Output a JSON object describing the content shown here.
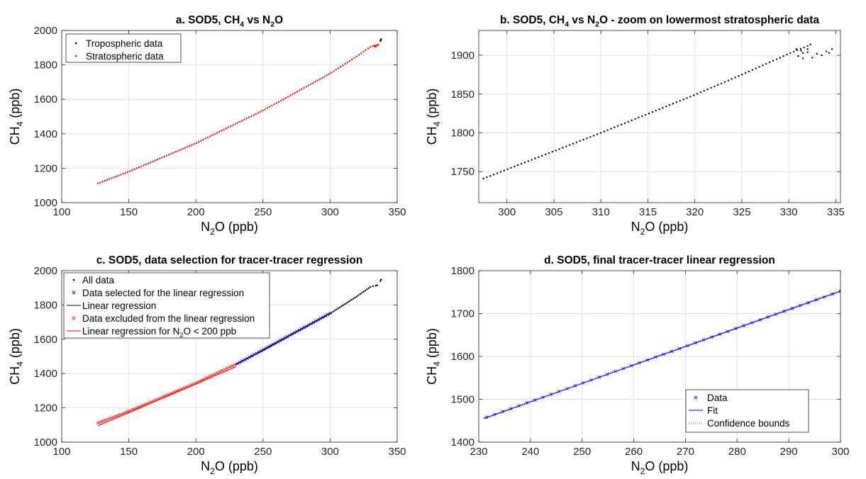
{
  "chart_data": [
    {
      "id": "a",
      "type": "scatter",
      "title": "a. SOD5, CH4 vs N2O",
      "title_parts": [
        "a. SOD5, CH",
        "4",
        " vs N",
        "2",
        "O"
      ],
      "xlabel_parts": [
        "N",
        "2",
        "O (ppb)"
      ],
      "ylabel_parts": [
        "CH",
        "4",
        " (ppb)"
      ],
      "xlim": [
        100,
        350
      ],
      "ylim": [
        1000,
        2000
      ],
      "xticks": [
        100,
        150,
        200,
        250,
        300,
        350
      ],
      "yticks": [
        1000,
        1200,
        1400,
        1600,
        1800,
        2000
      ],
      "grid": true,
      "legend_position": "top-left",
      "legend": [
        "Tropospheric data",
        "Stratospheric data"
      ],
      "series": [
        {
          "name": "Tropospheric data",
          "color": "#000000",
          "marker": "dot",
          "points": [
            [
              337.5,
              1938
            ],
            [
              337.8,
              1945
            ],
            [
              338.0,
              1950
            ],
            [
              337.6,
              1942
            ],
            [
              337.9,
              1947
            ]
          ]
        },
        {
          "name": "Stratospheric data",
          "color": "#ff0000",
          "marker": "dot",
          "curve": {
            "x": [
              127,
              150,
              200,
              250,
              300,
              320,
              330
            ],
            "y": [
              1112,
              1180,
              1345,
              1535,
              1750,
              1850,
              1905
            ],
            "n": 120
          },
          "points": [
            [
              332,
              1910
            ],
            [
              333,
              1912
            ],
            [
              334,
              1908
            ],
            [
              335,
              1915
            ],
            [
              333.5,
              1905
            ],
            [
              334.5,
              1912
            ],
            [
              336,
              1918
            ]
          ]
        }
      ]
    },
    {
      "id": "b",
      "type": "scatter",
      "title": "b. SOD5, CH4 vs N2O - zoom on lowermost stratospheric data",
      "title_parts": [
        "b. SOD5, CH",
        "4",
        " vs N",
        "2",
        "O - zoom on lowermost stratospheric data"
      ],
      "xlabel_parts": [
        "N",
        "2",
        "O (ppb)"
      ],
      "ylabel_parts": [
        "CH",
        "4",
        " (ppb)"
      ],
      "xlim": [
        297,
        335.5
      ],
      "ylim": [
        1710,
        1932
      ],
      "xticks": [
        300,
        305,
        310,
        315,
        320,
        325,
        330,
        335
      ],
      "yticks": [
        1750,
        1800,
        1850,
        1900
      ],
      "grid": true,
      "series": [
        {
          "name": "",
          "color": "#000000",
          "marker": "dot",
          "curve": {
            "x": [
              297.5,
              310,
              320,
              325,
              330,
              332
            ],
            "y": [
              1741,
              1800,
              1849,
              1875,
              1902,
              1912
            ],
            "n": 95
          },
          "points": [
            [
              332.3,
              1914
            ],
            [
              332.0,
              1908
            ],
            [
              331.5,
              1903
            ],
            [
              331.0,
              1899
            ],
            [
              331.5,
              1896
            ],
            [
              332.5,
              1897
            ],
            [
              333.5,
              1900
            ],
            [
              334.3,
              1903
            ],
            [
              334.6,
              1908
            ],
            [
              334.0,
              1905
            ],
            [
              333.0,
              1902
            ],
            [
              332.0,
              1904
            ],
            [
              331.3,
              1906
            ],
            [
              330.8,
              1908
            ]
          ]
        }
      ]
    },
    {
      "id": "c",
      "type": "scatter",
      "title": "c. SOD5, data selection for tracer-tracer regression",
      "title_parts": [
        "c. SOD5, data selection for tracer-tracer regression"
      ],
      "xlabel_parts": [
        "N",
        "2",
        "O (ppb)"
      ],
      "ylabel_parts": [
        "CH",
        "4",
        " (ppb)"
      ],
      "xlim": [
        100,
        350
      ],
      "ylim": [
        1000,
        2000
      ],
      "xticks": [
        100,
        150,
        200,
        250,
        300,
        350
      ],
      "yticks": [
        1000,
        1200,
        1400,
        1600,
        1800,
        2000
      ],
      "grid": true,
      "legend_position": "top-left",
      "legend": [
        {
          "label_parts": [
            "All data"
          ],
          "color": "#000000",
          "kind": "dot"
        },
        {
          "label_parts": [
            "Data selected for the linear regression"
          ],
          "color": "#0000ff",
          "kind": "cross"
        },
        {
          "label_parts": [
            "Linear regression"
          ],
          "color": "#00008b",
          "kind": "line"
        },
        {
          "label_parts": [
            "Data excluded from the linear regression"
          ],
          "color": "#ff0000",
          "kind": "cross"
        },
        {
          "label_parts": [
            "Linear regression for N",
            "2",
            "O < 200 ppb"
          ],
          "color": "#ff0000",
          "kind": "line"
        }
      ],
      "series": [
        {
          "name": "All data",
          "color": "#000000",
          "marker": "dot",
          "curve": {
            "x": [
              230,
              250,
              300,
              320,
              330
            ],
            "y": [
              1455,
              1535,
              1750,
              1850,
              1905
            ],
            "n": 80
          },
          "points": [
            [
              332,
              1910
            ],
            [
              334,
              1912
            ],
            [
              335,
              1915
            ],
            [
              337.5,
              1940
            ],
            [
              338,
              1948
            ]
          ]
        },
        {
          "name": "Data selected for the linear regression",
          "color": "#0000ff",
          "marker": "cross",
          "curve": {
            "x": [
              231,
              300
            ],
            "y": [
              1458,
              1752
            ],
            "n": 40
          }
        },
        {
          "name": "Linear regression",
          "color": "#00008b",
          "marker": "line",
          "line": [
            [
              230,
              1453
            ],
            [
              300,
              1752
            ]
          ]
        },
        {
          "name": "Data excluded from the linear regression",
          "color": "#ff0000",
          "marker": "cross",
          "curve": {
            "x": [
              127,
              150,
              200,
              229
            ],
            "y": [
              1112,
              1180,
              1345,
              1452
            ],
            "n": 55
          }
        },
        {
          "name": "Linear regression for N2O < 200 ppb",
          "color": "#ff0000",
          "marker": "line",
          "line": [
            [
              127,
              1095
            ],
            [
              230,
              1440
            ]
          ]
        }
      ]
    },
    {
      "id": "d",
      "type": "scatter",
      "title": "d. SOD5, final tracer-tracer linear regression",
      "title_parts": [
        "d. SOD5, final tracer-tracer linear regression"
      ],
      "xlabel_parts": [
        "N",
        "2",
        "O (ppb)"
      ],
      "ylabel_parts": [
        "CH",
        "4",
        " (ppb)"
      ],
      "xlim": [
        230,
        300
      ],
      "ylim": [
        1400,
        1800
      ],
      "xticks": [
        230,
        240,
        250,
        260,
        270,
        280,
        290,
        300
      ],
      "yticks": [
        1400,
        1500,
        1600,
        1700,
        1800
      ],
      "grid": true,
      "legend_position": "bottom-right",
      "legend": [
        {
          "label_parts": [
            "Data"
          ],
          "color": "#0000ff",
          "kind": "cross"
        },
        {
          "label_parts": [
            "Fit"
          ],
          "color": "#0000ff",
          "kind": "line"
        },
        {
          "label_parts": [
            "Confidence bounds"
          ],
          "color": "#0000ff",
          "kind": "dotted"
        }
      ],
      "series": [
        {
          "name": "Data",
          "color": "#0000ff",
          "marker": "cross",
          "curve": {
            "x": [
              231.5,
              300
            ],
            "y": [
              1458,
              1752
            ],
            "n": 45
          }
        },
        {
          "name": "Fit",
          "color": "#0000ff",
          "marker": "line",
          "line": [
            [
              231,
              1455
            ],
            [
              300,
              1752
            ]
          ]
        },
        {
          "name": "Confidence bounds",
          "color": "#0000ff",
          "marker": "dotted",
          "line": [
            [
              231,
              1457
            ],
            [
              300,
              1754
            ]
          ]
        }
      ]
    }
  ]
}
